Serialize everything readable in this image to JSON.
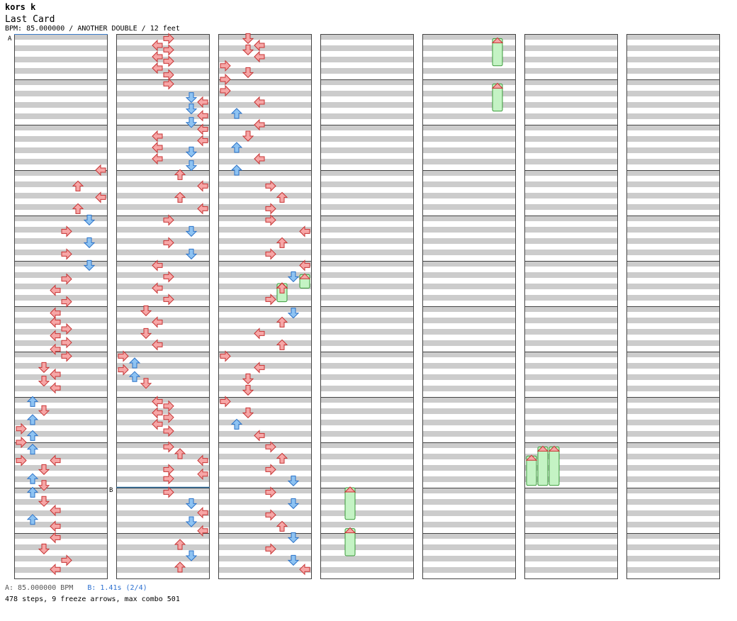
{
  "header": {
    "artist": "kors k",
    "title": "Last Card",
    "meta": "BPM: 85.000000 / ANOTHER DOUBLE / 12 feet"
  },
  "markers": {
    "a": "A",
    "b": "B"
  },
  "footer": {
    "bpm_a": "A: 85.000000 BPM",
    "bpm_b": "B: 1.41s (2/4)",
    "stats": "478 steps, 9 freeze arrows, max combo 501"
  },
  "colors": {
    "red_note": "#f6a6a6",
    "red_edge": "#c73232",
    "blue_note": "#8ec3f2",
    "blue_edge": "#2a72c8",
    "pink_note": "#f9c0f2",
    "pink_edge": "#b54fb0",
    "freeze": "#c4f3c4",
    "freeze_edge": "#3a9a3a",
    "stripe": "#cccccc"
  },
  "chart_data": {
    "type": "step-chart",
    "columns": 7,
    "measures_per_column": 12,
    "lanes": 8,
    "lane_colors": [
      "red",
      "blue",
      "red",
      "red",
      "red",
      "red",
      "blue",
      "red"
    ],
    "notes": [
      [
        0,
        3.0,
        7
      ],
      [
        0,
        3.35,
        5
      ],
      [
        0,
        3.6,
        7
      ],
      [
        0,
        3.85,
        5
      ],
      [
        0,
        4.1,
        6
      ],
      [
        0,
        4.35,
        4
      ],
      [
        0,
        4.6,
        6
      ],
      [
        0,
        4.85,
        4
      ],
      [
        0,
        5.1,
        6
      ],
      [
        0,
        5.4,
        4
      ],
      [
        0,
        5.65,
        3
      ],
      [
        0,
        5.9,
        4
      ],
      [
        0,
        6.15,
        3
      ],
      [
        0,
        6.35,
        3
      ],
      [
        0,
        6.5,
        4
      ],
      [
        0,
        6.65,
        3
      ],
      [
        0,
        6.8,
        4
      ],
      [
        0,
        6.95,
        3
      ],
      [
        0,
        7.1,
        4
      ],
      [
        0,
        7.35,
        2
      ],
      [
        0,
        7.5,
        3
      ],
      [
        0,
        7.65,
        2
      ],
      [
        0,
        7.8,
        3
      ],
      [
        0,
        8.1,
        1
      ],
      [
        0,
        8.3,
        2
      ],
      [
        0,
        8.5,
        1
      ],
      [
        0,
        8.7,
        0
      ],
      [
        0,
        8.85,
        1
      ],
      [
        0,
        9.0,
        0
      ],
      [
        0,
        9.15,
        1
      ],
      [
        0,
        9.4,
        0
      ],
      [
        0,
        9.4,
        3
      ],
      [
        0,
        9.6,
        2
      ],
      [
        0,
        9.8,
        1
      ],
      [
        0,
        9.95,
        2
      ],
      [
        0,
        10.1,
        1
      ],
      [
        0,
        10.3,
        2
      ],
      [
        0,
        10.5,
        3
      ],
      [
        0,
        10.7,
        1
      ],
      [
        0,
        10.85,
        3
      ],
      [
        0,
        11.1,
        3
      ],
      [
        0,
        11.35,
        2
      ],
      [
        0,
        11.6,
        4
      ],
      [
        0,
        11.8,
        3
      ],
      [
        1,
        0.1,
        4
      ],
      [
        1,
        0.25,
        3
      ],
      [
        1,
        0.35,
        4
      ],
      [
        1,
        0.5,
        3
      ],
      [
        1,
        0.6,
        4
      ],
      [
        1,
        0.75,
        3
      ],
      [
        1,
        0.9,
        4
      ],
      [
        1,
        1.1,
        4
      ],
      [
        1,
        1.4,
        6
      ],
      [
        1,
        1.5,
        7
      ],
      [
        1,
        1.65,
        6
      ],
      [
        1,
        1.8,
        7
      ],
      [
        1,
        1.95,
        6
      ],
      [
        1,
        2.1,
        7
      ],
      [
        1,
        2.25,
        3
      ],
      [
        1,
        2.35,
        7
      ],
      [
        1,
        2.5,
        3
      ],
      [
        1,
        2.6,
        6
      ],
      [
        1,
        2.75,
        3
      ],
      [
        1,
        2.9,
        6
      ],
      [
        1,
        3.1,
        5
      ],
      [
        1,
        3.35,
        7
      ],
      [
        1,
        3.6,
        5
      ],
      [
        1,
        3.85,
        7
      ],
      [
        1,
        4.1,
        4
      ],
      [
        1,
        4.35,
        6
      ],
      [
        1,
        4.6,
        4
      ],
      [
        1,
        4.85,
        6
      ],
      [
        1,
        5.1,
        3
      ],
      [
        1,
        5.35,
        4
      ],
      [
        1,
        5.6,
        3
      ],
      [
        1,
        5.85,
        4
      ],
      [
        1,
        6.1,
        2
      ],
      [
        1,
        6.35,
        3
      ],
      [
        1,
        6.6,
        2
      ],
      [
        1,
        6.85,
        3
      ],
      [
        1,
        7.1,
        0
      ],
      [
        1,
        7.25,
        1
      ],
      [
        1,
        7.4,
        0
      ],
      [
        1,
        7.55,
        1
      ],
      [
        1,
        7.7,
        2
      ],
      [
        1,
        8.1,
        3
      ],
      [
        1,
        8.2,
        4
      ],
      [
        1,
        8.35,
        3
      ],
      [
        1,
        8.45,
        4
      ],
      [
        1,
        8.6,
        3
      ],
      [
        1,
        8.75,
        4
      ],
      [
        1,
        9.1,
        4
      ],
      [
        1,
        9.25,
        5
      ],
      [
        1,
        9.4,
        7
      ],
      [
        1,
        9.6,
        4
      ],
      [
        1,
        9.7,
        7
      ],
      [
        1,
        9.8,
        4
      ],
      [
        1,
        10.1,
        4
      ],
      [
        1,
        10.35,
        6
      ],
      [
        1,
        10.55,
        7
      ],
      [
        1,
        10.75,
        6
      ],
      [
        1,
        10.95,
        7
      ],
      [
        1,
        11.25,
        5
      ],
      [
        1,
        11.5,
        6
      ],
      [
        1,
        11.75,
        5
      ],
      [
        2,
        0.1,
        2
      ],
      [
        2,
        0.25,
        3
      ],
      [
        2,
        0.35,
        2
      ],
      [
        2,
        0.5,
        3
      ],
      [
        2,
        0.7,
        0
      ],
      [
        2,
        0.85,
        2
      ],
      [
        2,
        1.0,
        0
      ],
      [
        2,
        1.25,
        0
      ],
      [
        2,
        1.5,
        3
      ],
      [
        2,
        1.75,
        1
      ],
      [
        2,
        2.0,
        3
      ],
      [
        2,
        2.25,
        2
      ],
      [
        2,
        2.5,
        1
      ],
      [
        2,
        2.75,
        3
      ],
      [
        2,
        3.0,
        1
      ],
      [
        2,
        3.35,
        4
      ],
      [
        2,
        3.6,
        5
      ],
      [
        2,
        3.85,
        4
      ],
      [
        2,
        4.1,
        4
      ],
      [
        2,
        4.35,
        7
      ],
      [
        2,
        4.6,
        5
      ],
      [
        2,
        4.85,
        4
      ],
      [
        2,
        5.1,
        7
      ],
      [
        2,
        5.35,
        6
      ],
      [
        2,
        5.6,
        5
      ],
      [
        2,
        5.85,
        4
      ],
      [
        2,
        6.15,
        6
      ],
      [
        2,
        6.35,
        5
      ],
      [
        2,
        6.6,
        3
      ],
      [
        2,
        6.85,
        5
      ],
      [
        2,
        7.1,
        0
      ],
      [
        2,
        7.35,
        3
      ],
      [
        2,
        7.6,
        2
      ],
      [
        2,
        7.85,
        2
      ],
      [
        2,
        8.1,
        0
      ],
      [
        2,
        8.35,
        2
      ],
      [
        2,
        8.6,
        1
      ],
      [
        2,
        8.85,
        3
      ],
      [
        2,
        9.1,
        4
      ],
      [
        2,
        9.35,
        5
      ],
      [
        2,
        9.6,
        4
      ],
      [
        2,
        9.85,
        6
      ],
      [
        2,
        10.1,
        4
      ],
      [
        2,
        10.35,
        6
      ],
      [
        2,
        10.6,
        4
      ],
      [
        2,
        10.85,
        5
      ],
      [
        2,
        11.1,
        6
      ],
      [
        2,
        11.35,
        4
      ],
      [
        2,
        11.6,
        6
      ],
      [
        2,
        11.8,
        7
      ]
    ],
    "freezes": [
      [
        2,
        5.5,
        5,
        5.9
      ],
      [
        2,
        5.3,
        7,
        5.6
      ],
      [
        3,
        10.0,
        2,
        10.7
      ],
      [
        3,
        10.9,
        2,
        11.5
      ],
      [
        4,
        0.1,
        6,
        0.7
      ],
      [
        4,
        1.1,
        6,
        1.7
      ],
      [
        5,
        9.1,
        1,
        9.95
      ],
      [
        5,
        9.1,
        2,
        9.95
      ],
      [
        5,
        9.3,
        0,
        9.95
      ]
    ]
  }
}
